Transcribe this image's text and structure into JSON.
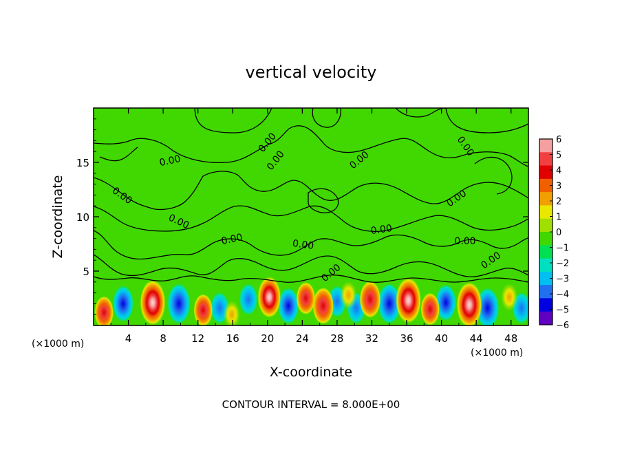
{
  "chart_data": {
    "type": "heatmap",
    "title": "vertical velocity",
    "xlabel": "X-coordinate",
    "ylabel": "Z-coordinate",
    "x_unit_left": "(×1000 m)",
    "x_unit_right": "(×1000 m)",
    "xlim": [
      0,
      50
    ],
    "ylim": [
      0,
      20
    ],
    "x_ticks": [
      4,
      8,
      12,
      16,
      20,
      24,
      28,
      32,
      36,
      40,
      44,
      48
    ],
    "y_ticks": [
      5,
      10,
      15
    ],
    "footer": "CONTOUR INTERVAL = 8.000E+00",
    "colorbar": {
      "ticks": [
        6,
        5,
        4,
        3,
        2,
        1,
        0,
        -1,
        -2,
        -3,
        -4,
        -5,
        -6
      ],
      "tick_labels": [
        "6",
        "5",
        "4",
        "3",
        "2",
        "1",
        "0",
        "−1",
        "−2",
        "−3",
        "−4",
        "−5",
        "−6"
      ],
      "colors": [
        "#f4a0a0",
        "#f04040",
        "#e00000",
        "#f06000",
        "#f0a000",
        "#e8e800",
        "#a0e000",
        "#40d800",
        "#00e050",
        "#00e0c0",
        "#00c0f0",
        "#2070f0",
        "#0000e0",
        "#6000c0"
      ]
    },
    "background_value": 0,
    "updraft_cores": [
      {
        "x": 6.8,
        "z": 2.1,
        "w": 6
      },
      {
        "x": 20.2,
        "z": 2.6,
        "w": 5
      },
      {
        "x": 26.4,
        "z": 1.8,
        "w": 4
      },
      {
        "x": 31.8,
        "z": 2.4,
        "w": 4
      },
      {
        "x": 36.2,
        "z": 2.3,
        "w": 6
      },
      {
        "x": 43.2,
        "z": 1.9,
        "w": 6
      },
      {
        "x": 1.2,
        "z": 1.2,
        "w": 3
      },
      {
        "x": 12.6,
        "z": 1.4,
        "w": 3
      },
      {
        "x": 15.9,
        "z": 1.0,
        "w": 2
      },
      {
        "x": 24.4,
        "z": 2.5,
        "w": 3
      },
      {
        "x": 29.3,
        "z": 2.8,
        "w": 2
      },
      {
        "x": 38.7,
        "z": 1.5,
        "w": 3
      },
      {
        "x": 47.8,
        "z": 2.6,
        "w": 2
      }
    ],
    "downdraft_cores": [
      {
        "x": 3.4,
        "z": 2.0,
        "w": -4
      },
      {
        "x": 9.8,
        "z": 2.0,
        "w": -5
      },
      {
        "x": 14.5,
        "z": 1.6,
        "w": -3
      },
      {
        "x": 17.8,
        "z": 2.4,
        "w": -3
      },
      {
        "x": 22.4,
        "z": 1.8,
        "w": -4
      },
      {
        "x": 28.0,
        "z": 2.2,
        "w": -3
      },
      {
        "x": 30.2,
        "z": 1.6,
        "w": -3
      },
      {
        "x": 34.0,
        "z": 2.0,
        "w": -5
      },
      {
        "x": 40.5,
        "z": 2.1,
        "w": -4
      },
      {
        "x": 45.3,
        "z": 1.6,
        "w": -5
      },
      {
        "x": 49.2,
        "z": 1.6,
        "w": -3
      }
    ],
    "contour_labels": [
      "0.00",
      "0.00",
      "0.00",
      "0.00",
      "0.00",
      "0.00",
      "0.00",
      "0.00",
      "0.00",
      "0.00",
      "0.00",
      "0.00",
      "0.00",
      "0.00"
    ]
  }
}
